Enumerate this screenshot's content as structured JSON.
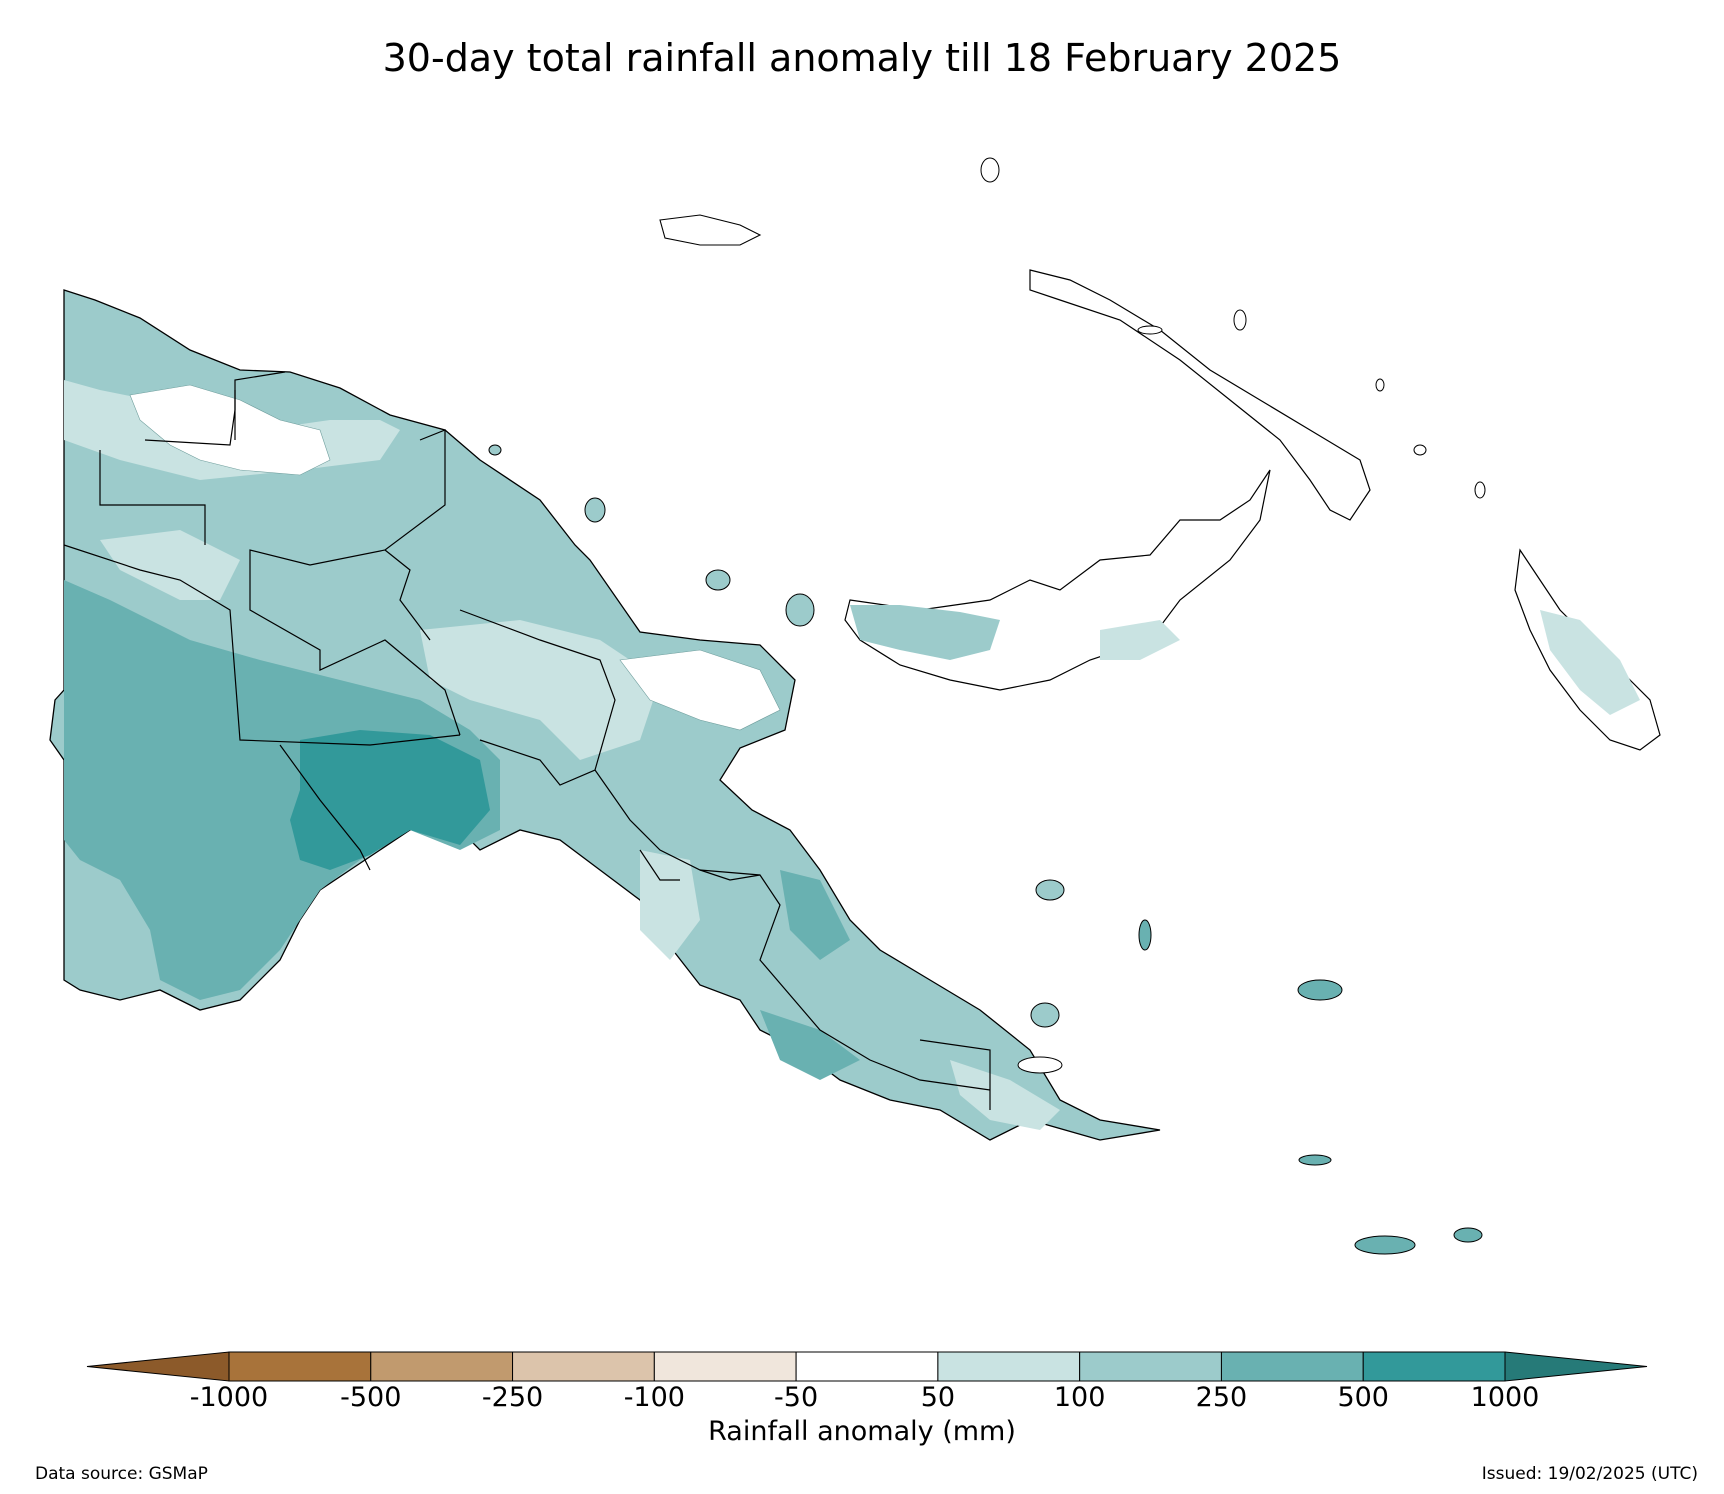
{
  "title": "30-day total rainfall anomaly till 18 February 2025",
  "colorbar": {
    "label": "Rainfall anomaly (mm)",
    "ticks": [
      "-1000",
      "-500",
      "-250",
      "-100",
      "-50",
      "50",
      "100",
      "250",
      "500",
      "1000"
    ],
    "bins": [
      {
        "range": "< -1000",
        "color": "#8c5a2a"
      },
      {
        "range": "-1000 to -500",
        "color": "#a8733a"
      },
      {
        "range": "-500 to -250",
        "color": "#c19a6e"
      },
      {
        "range": "-250 to -100",
        "color": "#dcc4ab"
      },
      {
        "range": "-100 to -50",
        "color": "#f0e6dc"
      },
      {
        "range": "-50 to 50",
        "color": "#ffffff"
      },
      {
        "range": "50 to 100",
        "color": "#c9e3e2"
      },
      {
        "range": "100 to 250",
        "color": "#9ccbcb"
      },
      {
        "range": "250 to 500",
        "color": "#69b1b1"
      },
      {
        "range": "500 to 1000",
        "color": "#32999a"
      },
      {
        "range": "> 1000",
        "color": "#267a78"
      }
    ]
  },
  "footer": {
    "source": "Data source: GSMaP",
    "issued": "Issued: 19/02/2025 (UTC)"
  }
}
